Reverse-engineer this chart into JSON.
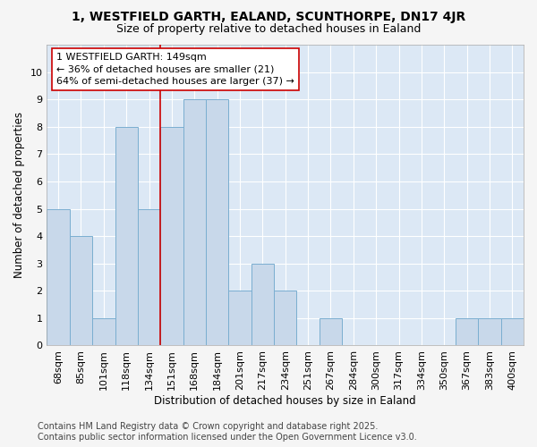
{
  "title": "1, WESTFIELD GARTH, EALAND, SCUNTHORPE, DN17 4JR",
  "subtitle": "Size of property relative to detached houses in Ealand",
  "xlabel": "Distribution of detached houses by size in Ealand",
  "ylabel": "Number of detached properties",
  "categories": [
    "68sqm",
    "85sqm",
    "101sqm",
    "118sqm",
    "134sqm",
    "151sqm",
    "168sqm",
    "184sqm",
    "201sqm",
    "217sqm",
    "234sqm",
    "251sqm",
    "267sqm",
    "284sqm",
    "300sqm",
    "317sqm",
    "334sqm",
    "350sqm",
    "367sqm",
    "383sqm",
    "400sqm"
  ],
  "values": [
    5,
    4,
    1,
    8,
    5,
    8,
    9,
    9,
    2,
    3,
    2,
    0,
    1,
    0,
    0,
    0,
    0,
    0,
    1,
    1,
    1
  ],
  "bar_color": "#c8d8ea",
  "bar_edge_color": "#7aaed0",
  "highlight_index": 5,
  "highlight_line_color": "#cc0000",
  "annotation_text": "1 WESTFIELD GARTH: 149sqm\n← 36% of detached houses are smaller (21)\n64% of semi-detached houses are larger (37) →",
  "annotation_box_color": "#ffffff",
  "annotation_box_edge": "#cc0000",
  "ylim": [
    0,
    11
  ],
  "yticks": [
    0,
    1,
    2,
    3,
    4,
    5,
    6,
    7,
    8,
    9,
    10,
    11
  ],
  "footer_line1": "Contains HM Land Registry data © Crown copyright and database right 2025.",
  "footer_line2": "Contains public sector information licensed under the Open Government Licence v3.0.",
  "plot_bg_color": "#dce8f5",
  "fig_bg_color": "#f5f5f5",
  "grid_color": "#ffffff",
  "title_fontsize": 10,
  "subtitle_fontsize": 9,
  "axis_label_fontsize": 8.5,
  "tick_fontsize": 8,
  "annotation_fontsize": 8,
  "footer_fontsize": 7
}
